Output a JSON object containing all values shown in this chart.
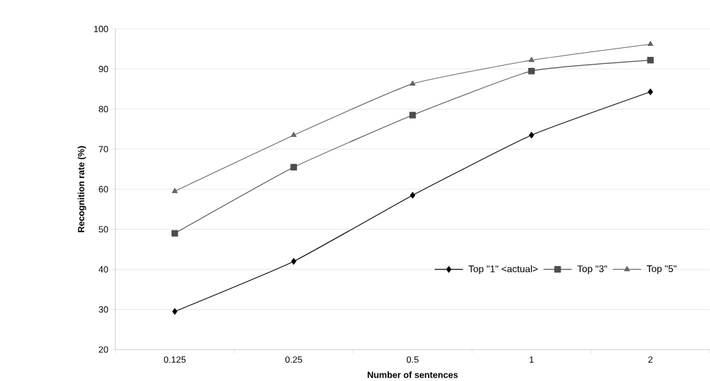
{
  "chart_data": {
    "type": "line",
    "xlabel": "Number of sentences",
    "ylabel": "Recognition rate (%)",
    "categories": [
      "0.125",
      "0.25",
      "0.5",
      "1",
      "2"
    ],
    "ylim": [
      20,
      100
    ],
    "yticks": [
      20,
      30,
      40,
      50,
      60,
      70,
      80,
      90,
      100
    ],
    "grid": "y",
    "legend": "bottom right",
    "line_style": "solid",
    "series": [
      {
        "name": "Top \"1\" <actual>",
        "color": "#000000",
        "marker": "diamond",
        "values": [
          29.5,
          42,
          58.5,
          73.5,
          84.3
        ]
      },
      {
        "name": "Top \"3\"",
        "color": "#4d4d4d",
        "marker": "square",
        "values": [
          49,
          65.5,
          78.5,
          89.5,
          92.2
        ]
      },
      {
        "name": "Top \"5\"",
        "color": "#666666",
        "marker": "triangle",
        "values": [
          59.5,
          73.5,
          86.3,
          92.2,
          96.2
        ]
      }
    ]
  }
}
